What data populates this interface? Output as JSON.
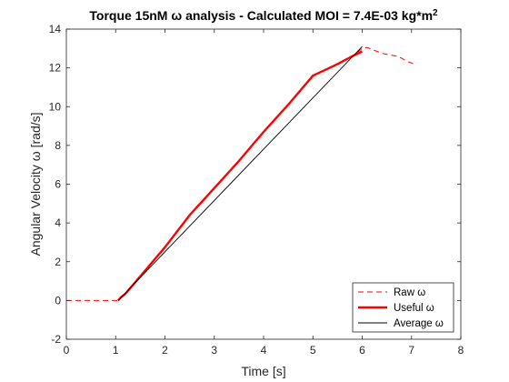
{
  "chart_data": {
    "type": "line",
    "title": "Torque 15nM ω analysis - Calculated MOI = 7.4E-03 kg*m",
    "title_superscript": "2",
    "xlabel": "Time [s]",
    "ylabel": "Angular Velocity ω [rad/s]",
    "xlim": [
      0,
      8
    ],
    "ylim": [
      -2,
      14
    ],
    "xticks": [
      "0",
      "1",
      "2",
      "3",
      "4",
      "5",
      "6",
      "7",
      "8"
    ],
    "yticks": [
      "-2",
      "0",
      "2",
      "4",
      "6",
      "8",
      "10",
      "12",
      "14"
    ],
    "grid": false,
    "legend_position": "bottom-right",
    "series": [
      {
        "name": "Raw ω",
        "style": "dashed",
        "color": "#ff0000",
        "x": [
          0,
          0.5,
          1.0,
          1.05,
          1.1,
          1.2,
          1.5,
          2.0,
          2.5,
          3.0,
          3.5,
          4.0,
          4.5,
          5.0,
          5.5,
          5.8,
          6.0,
          6.1,
          6.2,
          6.3,
          6.4,
          6.5,
          6.6,
          6.7,
          6.8,
          6.9,
          7.0,
          7.05
        ],
        "y": [
          0,
          0,
          0,
          0,
          0.15,
          0.35,
          1.25,
          2.75,
          4.4,
          5.8,
          7.2,
          8.7,
          10.1,
          11.6,
          12.2,
          12.6,
          13.0,
          13.05,
          12.95,
          12.85,
          12.75,
          12.7,
          12.65,
          12.6,
          12.5,
          12.35,
          12.25,
          12.2
        ]
      },
      {
        "name": "Useful ω",
        "style": "solid-thick",
        "color": "#ff0000",
        "x": [
          1.05,
          1.1,
          1.2,
          1.5,
          2.0,
          2.5,
          3.0,
          3.5,
          4.0,
          4.5,
          5.0,
          5.5,
          5.8,
          6.0
        ],
        "y": [
          0,
          0.15,
          0.35,
          1.25,
          2.75,
          4.4,
          5.8,
          7.2,
          8.7,
          10.1,
          11.6,
          12.2,
          12.6,
          12.85
        ]
      },
      {
        "name": "Average ω",
        "style": "solid-thin",
        "color": "#000000",
        "x": [
          1.05,
          6.0
        ],
        "y": [
          0,
          13.1
        ]
      }
    ]
  }
}
